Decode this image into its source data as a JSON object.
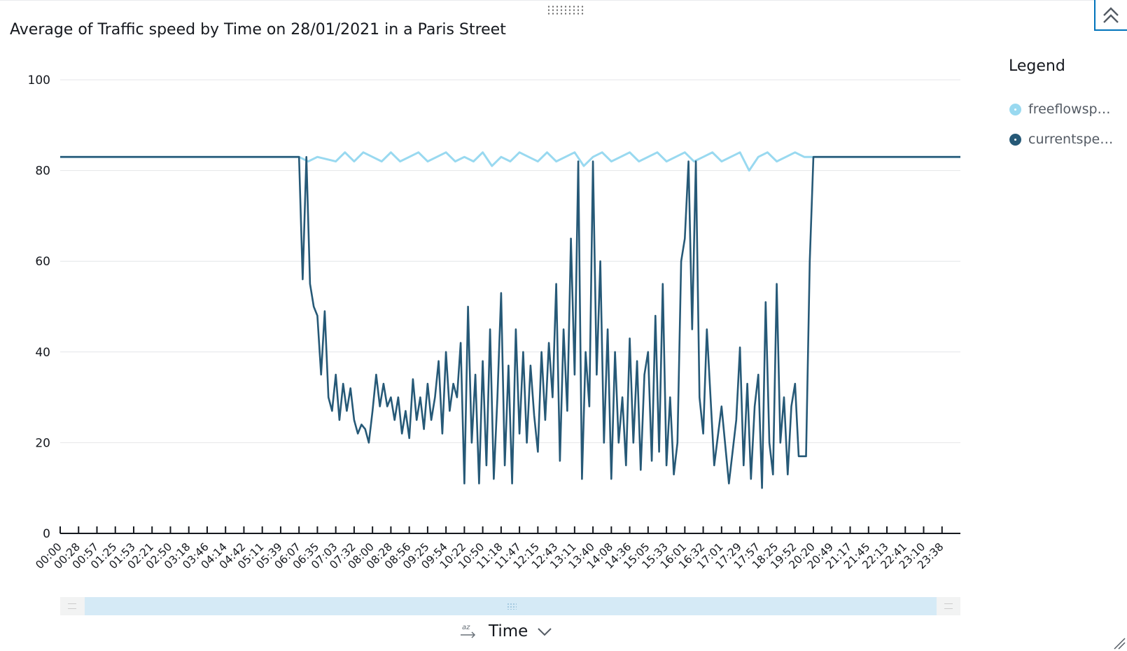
{
  "window": {
    "title": "Average of Traffic speed by Time on 28/01/2021 in a Paris Street"
  },
  "legend": {
    "title": "Legend",
    "items": [
      {
        "label": "freeflowsp…",
        "color": "#99d9f0"
      },
      {
        "label": "currentspeed",
        "color": "#265977"
      }
    ]
  },
  "x_field": {
    "label": "Time",
    "sort_icon": "sort-az-icon",
    "dropdown_icon": "chevron-down-icon"
  },
  "icons": {
    "collapse": "double-chevron-up-icon",
    "drag": "drag-grip-icon",
    "resize": "resize-corner-icon"
  },
  "chart_data": {
    "type": "line",
    "title": "Average of Traffic speed by Time on 28/01/2021 in a Paris Street",
    "xlabel": "Time",
    "ylabel": "",
    "ylim": [
      0,
      100
    ],
    "yticks": [
      0,
      20,
      40,
      60,
      80,
      100
    ],
    "grid": true,
    "legend_position": "right",
    "x_tick_labels": [
      "00:00",
      "00:28",
      "00:57",
      "01:25",
      "01:53",
      "02:21",
      "02:50",
      "03:18",
      "03:46",
      "04:14",
      "04:42",
      "05:11",
      "05:39",
      "06:07",
      "06:35",
      "07:03",
      "07:32",
      "08:00",
      "08:28",
      "08:56",
      "09:25",
      "09:54",
      "10:22",
      "10:50",
      "11:18",
      "11:47",
      "12:15",
      "12:43",
      "13:11",
      "13:40",
      "14:08",
      "14:36",
      "15:05",
      "15:33",
      "16:01",
      "16:32",
      "17:01",
      "17:29",
      "17:57",
      "18:25",
      "19:52",
      "20:20",
      "20:49",
      "21:17",
      "21:45",
      "22:13",
      "22:41",
      "23:10",
      "23:38"
    ],
    "series": [
      {
        "name": "freeflowsp…",
        "color": "#99d9f0",
        "points": [
          [
            0,
            83
          ],
          [
            13,
            83
          ],
          [
            13.5,
            82
          ],
          [
            14,
            83
          ],
          [
            15,
            82
          ],
          [
            15.5,
            84
          ],
          [
            16,
            82
          ],
          [
            16.5,
            84
          ],
          [
            17,
            83
          ],
          [
            17.5,
            82
          ],
          [
            18,
            84
          ],
          [
            18.5,
            82
          ],
          [
            19,
            83
          ],
          [
            19.5,
            84
          ],
          [
            20,
            82
          ],
          [
            20.5,
            83
          ],
          [
            21,
            84
          ],
          [
            21.5,
            82
          ],
          [
            22,
            83
          ],
          [
            22.5,
            82
          ],
          [
            23,
            84
          ],
          [
            23.5,
            81
          ],
          [
            24,
            83
          ],
          [
            24.5,
            82
          ],
          [
            25,
            84
          ],
          [
            25.5,
            83
          ],
          [
            26,
            82
          ],
          [
            26.5,
            84
          ],
          [
            27,
            82
          ],
          [
            27.5,
            83
          ],
          [
            28,
            84
          ],
          [
            28.5,
            81
          ],
          [
            29,
            83
          ],
          [
            29.5,
            84
          ],
          [
            30,
            82
          ],
          [
            30.5,
            83
          ],
          [
            31,
            84
          ],
          [
            31.5,
            82
          ],
          [
            32,
            83
          ],
          [
            32.5,
            84
          ],
          [
            33,
            82
          ],
          [
            33.5,
            83
          ],
          [
            34,
            84
          ],
          [
            34.5,
            82
          ],
          [
            35,
            83
          ],
          [
            35.5,
            84
          ],
          [
            36,
            82
          ],
          [
            36.5,
            83
          ],
          [
            37,
            84
          ],
          [
            37.5,
            80
          ],
          [
            38,
            83
          ],
          [
            38.5,
            84
          ],
          [
            39,
            82
          ],
          [
            39.5,
            83
          ],
          [
            40,
            84
          ],
          [
            40.5,
            83
          ],
          [
            41,
            83
          ],
          [
            49,
            83
          ]
        ]
      },
      {
        "name": "currentspeed",
        "color": "#265977",
        "points": [
          [
            0,
            83
          ],
          [
            13,
            83
          ],
          [
            13.2,
            56
          ],
          [
            13.4,
            83
          ],
          [
            13.6,
            55
          ],
          [
            13.8,
            50
          ],
          [
            14,
            48
          ],
          [
            14.2,
            35
          ],
          [
            14.4,
            49
          ],
          [
            14.6,
            30
          ],
          [
            14.8,
            27
          ],
          [
            15,
            35
          ],
          [
            15.2,
            25
          ],
          [
            15.4,
            33
          ],
          [
            15.6,
            27
          ],
          [
            15.8,
            32
          ],
          [
            16,
            25
          ],
          [
            16.2,
            22
          ],
          [
            16.4,
            24
          ],
          [
            16.6,
            23
          ],
          [
            16.8,
            20
          ],
          [
            17,
            27
          ],
          [
            17.2,
            35
          ],
          [
            17.4,
            28
          ],
          [
            17.6,
            33
          ],
          [
            17.8,
            28
          ],
          [
            18,
            30
          ],
          [
            18.2,
            25
          ],
          [
            18.4,
            30
          ],
          [
            18.6,
            22
          ],
          [
            18.8,
            27
          ],
          [
            19,
            21
          ],
          [
            19.2,
            34
          ],
          [
            19.4,
            25
          ],
          [
            19.6,
            30
          ],
          [
            19.8,
            23
          ],
          [
            20,
            33
          ],
          [
            20.2,
            25
          ],
          [
            20.4,
            30
          ],
          [
            20.6,
            38
          ],
          [
            20.8,
            22
          ],
          [
            21,
            40
          ],
          [
            21.2,
            27
          ],
          [
            21.4,
            33
          ],
          [
            21.6,
            30
          ],
          [
            21.8,
            42
          ],
          [
            22,
            11
          ],
          [
            22.2,
            50
          ],
          [
            22.4,
            20
          ],
          [
            22.6,
            35
          ],
          [
            22.8,
            11
          ],
          [
            23,
            38
          ],
          [
            23.2,
            15
          ],
          [
            23.4,
            45
          ],
          [
            23.6,
            12
          ],
          [
            23.8,
            30
          ],
          [
            24,
            53
          ],
          [
            24.2,
            15
          ],
          [
            24.4,
            37
          ],
          [
            24.6,
            11
          ],
          [
            24.8,
            45
          ],
          [
            25,
            22
          ],
          [
            25.2,
            40
          ],
          [
            25.4,
            20
          ],
          [
            25.6,
            37
          ],
          [
            25.8,
            26
          ],
          [
            26,
            18
          ],
          [
            26.2,
            40
          ],
          [
            26.4,
            25
          ],
          [
            26.6,
            42
          ],
          [
            26.8,
            30
          ],
          [
            27,
            55
          ],
          [
            27.2,
            16
          ],
          [
            27.4,
            45
          ],
          [
            27.6,
            27
          ],
          [
            27.8,
            65
          ],
          [
            28,
            35
          ],
          [
            28.2,
            82
          ],
          [
            28.4,
            12
          ],
          [
            28.6,
            40
          ],
          [
            28.8,
            28
          ],
          [
            29,
            82
          ],
          [
            29.2,
            35
          ],
          [
            29.4,
            60
          ],
          [
            29.6,
            20
          ],
          [
            29.8,
            45
          ],
          [
            30,
            12
          ],
          [
            30.2,
            40
          ],
          [
            30.4,
            20
          ],
          [
            30.6,
            30
          ],
          [
            30.8,
            15
          ],
          [
            31,
            43
          ],
          [
            31.2,
            20
          ],
          [
            31.4,
            38
          ],
          [
            31.6,
            14
          ],
          [
            31.8,
            35
          ],
          [
            32,
            40
          ],
          [
            32.2,
            16
          ],
          [
            32.4,
            48
          ],
          [
            32.6,
            18
          ],
          [
            32.8,
            55
          ],
          [
            33,
            15
          ],
          [
            33.2,
            30
          ],
          [
            33.4,
            13
          ],
          [
            33.6,
            20
          ],
          [
            33.8,
            60
          ],
          [
            34,
            65
          ],
          [
            34.2,
            82
          ],
          [
            34.4,
            45
          ],
          [
            34.6,
            82
          ],
          [
            34.8,
            30
          ],
          [
            35,
            22
          ],
          [
            35.2,
            45
          ],
          [
            35.6,
            15
          ],
          [
            36,
            28
          ],
          [
            36.4,
            11
          ],
          [
            36.8,
            25
          ],
          [
            37,
            41
          ],
          [
            37.2,
            15
          ],
          [
            37.4,
            33
          ],
          [
            37.6,
            12
          ],
          [
            37.8,
            28
          ],
          [
            38,
            35
          ],
          [
            38.2,
            10
          ],
          [
            38.4,
            51
          ],
          [
            38.6,
            20
          ],
          [
            38.8,
            13
          ],
          [
            39,
            55
          ],
          [
            39.2,
            20
          ],
          [
            39.4,
            30
          ],
          [
            39.6,
            13
          ],
          [
            39.8,
            28
          ],
          [
            40,
            33
          ],
          [
            40.2,
            17
          ],
          [
            40.6,
            17
          ],
          [
            40.8,
            60
          ],
          [
            41,
            83
          ],
          [
            49,
            83
          ]
        ]
      }
    ]
  }
}
